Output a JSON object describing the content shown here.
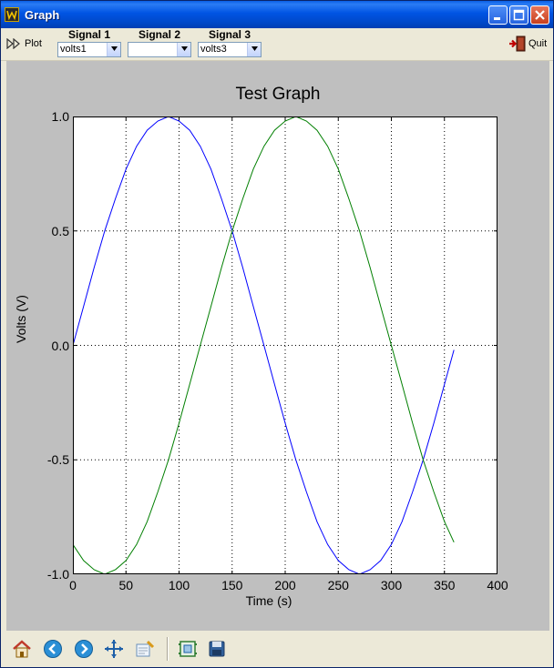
{
  "window": {
    "title": "Graph"
  },
  "toolbar": {
    "plot_label": "Plot",
    "quit_label": "Quit",
    "signals": [
      {
        "label": "Signal 1",
        "selected": "volts1"
      },
      {
        "label": "Signal 2",
        "selected": ""
      },
      {
        "label": "Signal 3",
        "selected": "volts3"
      }
    ]
  },
  "navbar": {
    "buttons": [
      "home-icon",
      "back-icon",
      "forward-icon",
      "pan-icon",
      "zoom-icon",
      "subplots-icon",
      "save-icon"
    ]
  },
  "colors": {
    "series1": "#0000ff",
    "series2": "#007f00",
    "plot_bg": "#bfbfbf"
  },
  "chart_data": {
    "type": "line",
    "title": "Test Graph",
    "xlabel": "Time (s)",
    "ylabel": "Volts (V)",
    "xlim": [
      0,
      400
    ],
    "ylim": [
      -1.0,
      1.0
    ],
    "xticks": [
      "0",
      "50",
      "100",
      "150",
      "200",
      "250",
      "300",
      "350",
      "400"
    ],
    "yticks": [
      "1.0",
      "0.5",
      "0.0",
      "-0.5",
      "-1.0"
    ],
    "grid": true,
    "series": [
      {
        "color": "#0000ff",
        "x": [
          0,
          10,
          20,
          30,
          40,
          50,
          60,
          70,
          80,
          90,
          100,
          110,
          120,
          130,
          140,
          150,
          160,
          170,
          180,
          190,
          200,
          210,
          220,
          230,
          240,
          250,
          260,
          270,
          280,
          290,
          300,
          310,
          320,
          330,
          340,
          350,
          359
        ],
        "values": [
          0.0,
          0.17,
          0.34,
          0.5,
          0.64,
          0.77,
          0.87,
          0.94,
          0.98,
          1.0,
          0.98,
          0.94,
          0.87,
          0.77,
          0.64,
          0.5,
          0.34,
          0.17,
          0.0,
          -0.17,
          -0.34,
          -0.5,
          -0.64,
          -0.77,
          -0.87,
          -0.94,
          -0.98,
          -1.0,
          -0.98,
          -0.94,
          -0.87,
          -0.77,
          -0.64,
          -0.5,
          -0.34,
          -0.17,
          -0.02
        ]
      },
      {
        "color": "#007f00",
        "x": [
          0,
          10,
          20,
          30,
          40,
          50,
          60,
          70,
          80,
          90,
          100,
          110,
          120,
          130,
          140,
          150,
          160,
          170,
          180,
          190,
          200,
          210,
          220,
          230,
          240,
          250,
          260,
          270,
          280,
          290,
          300,
          310,
          320,
          330,
          340,
          350,
          359
        ],
        "values": [
          -0.87,
          -0.94,
          -0.98,
          -1.0,
          -0.98,
          -0.94,
          -0.87,
          -0.77,
          -0.64,
          -0.5,
          -0.34,
          -0.17,
          0.0,
          0.17,
          0.34,
          0.5,
          0.64,
          0.77,
          0.87,
          0.94,
          0.98,
          1.0,
          0.98,
          0.94,
          0.87,
          0.77,
          0.64,
          0.5,
          0.34,
          0.17,
          0.0,
          -0.17,
          -0.34,
          -0.5,
          -0.64,
          -0.77,
          -0.86
        ]
      }
    ]
  }
}
